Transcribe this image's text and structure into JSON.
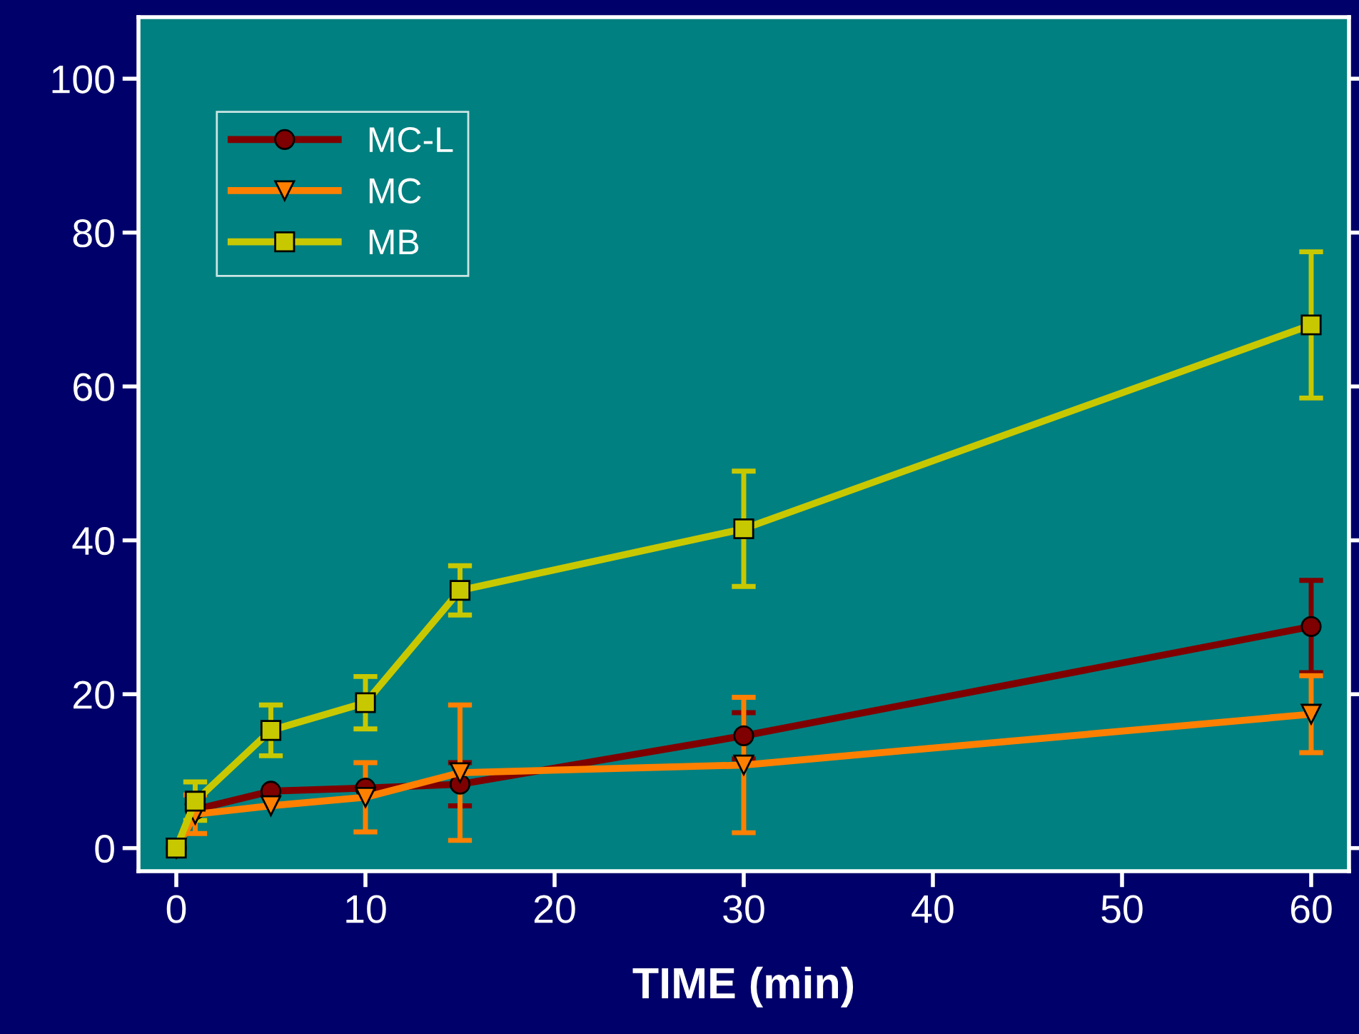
{
  "chart_data": {
    "type": "line",
    "xlabel": "TIME (min)",
    "x": [
      0,
      1,
      5,
      10,
      15,
      30,
      60
    ],
    "xlim": [
      -2,
      62
    ],
    "xticks": [
      0,
      10,
      20,
      30,
      40,
      50,
      60
    ],
    "ylim": [
      -3,
      108
    ],
    "yticks": [
      0,
      20,
      40,
      60,
      80,
      100
    ],
    "legend": "top left",
    "grid": false,
    "series": [
      {
        "name": "MC-L",
        "color": "#7f0000",
        "marker": "circle",
        "values": [
          0,
          5,
          7.4,
          7.8,
          8.3,
          14.6,
          28.8
        ],
        "errors": [
          null,
          null,
          null,
          null,
          2.8,
          3,
          6
        ]
      },
      {
        "name": "MC",
        "color": "#ff8000",
        "marker": "triangle",
        "values": [
          0,
          4.4,
          5.5,
          6.6,
          9.8,
          10.8,
          17.4
        ],
        "errors": [
          null,
          2.5,
          null,
          4.5,
          8.8,
          8.8,
          5
        ]
      },
      {
        "name": "MB",
        "color": "#c8c800",
        "marker": "square",
        "values": [
          0,
          6.1,
          15.3,
          18.9,
          33.5,
          41.5,
          68
        ],
        "errors": [
          null,
          2.5,
          3.3,
          3.4,
          3.2,
          7.5,
          9.5
        ]
      }
    ]
  }
}
